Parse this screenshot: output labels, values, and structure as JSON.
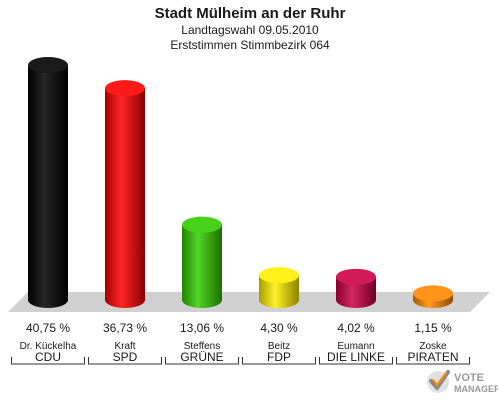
{
  "chart_data": {
    "type": "bar",
    "title": "Stadt Mülheim an der Ruhr",
    "subtitle1": "Landtagswahl 09.05.2010",
    "subtitle2": "Erststimmen Stimmbezirk 064",
    "ylim": [
      0,
      40.75
    ],
    "categories": [
      "CDU",
      "SPD",
      "GRÜNE",
      "FDP",
      "DIE LINKE",
      "PIRATEN"
    ],
    "candidates": [
      "Dr. Kückelha",
      "Kraft",
      "Steffens",
      "Beitz",
      "Eumann",
      "Zoske"
    ],
    "values": [
      40.75,
      36.73,
      13.06,
      4.3,
      4.02,
      1.15
    ],
    "value_labels": [
      "40,75 %",
      "36,73 %",
      "13,06 %",
      "4,30 %",
      "4,02 %",
      "1,15 %"
    ],
    "colors": [
      "#000000",
      "#ff0000",
      "#33cc00",
      "#ffee00",
      "#cc0044",
      "#ff8800"
    ]
  },
  "logo": {
    "line1": "VOTE",
    "line2": "MANAGER",
    "icon": "checkmark-ballot-icon"
  }
}
